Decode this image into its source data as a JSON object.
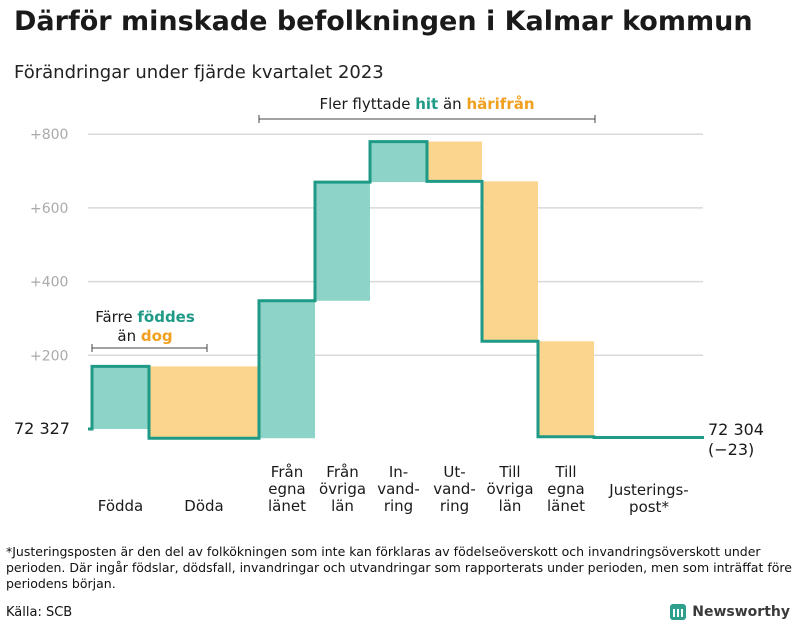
{
  "title": "Därför minskade befolkningen i Kalmar kommun",
  "subtitle": "Förändringar under fjärde kvartalet 2023",
  "colors": {
    "increase": "#8dd3c7",
    "decrease": "#fbd48d",
    "line": "#1e9a86",
    "accent_green": "#1e9a86",
    "accent_orange": "#f0a01e",
    "grid": "#d9d9d9",
    "tick": "#aaaaaa"
  },
  "chart_data": {
    "type": "bar",
    "variant": "waterfall",
    "start_value": 72327,
    "end_value": 72304,
    "net_change": -23,
    "start_label": "72  327",
    "end_label_line1": "72 304",
    "end_label_line2": "(−23)",
    "y_ticks": [
      "+800",
      "+600",
      "+400",
      "+200"
    ],
    "y_tick_values": [
      800,
      600,
      400,
      200
    ],
    "ylim": [
      -30,
      830
    ],
    "steps": [
      {
        "label": [
          "Födda"
        ],
        "kind": "increase",
        "from": 0,
        "to": 170
      },
      {
        "label": [
          "Döda"
        ],
        "kind": "decrease",
        "from": 170,
        "to": -25
      },
      {
        "label": [
          "Från",
          "egna",
          "länet"
        ],
        "kind": "increase",
        "from": -25,
        "to": 348
      },
      {
        "label": [
          "Från",
          "övriga",
          "län"
        ],
        "kind": "increase",
        "from": 348,
        "to": 670
      },
      {
        "label": [
          "In-",
          "vand-",
          "ring"
        ],
        "kind": "increase",
        "from": 670,
        "to": 780
      },
      {
        "label": [
          "Ut-",
          "vand-",
          "ring"
        ],
        "kind": "decrease",
        "from": 780,
        "to": 672
      },
      {
        "label": [
          "Till",
          "övriga",
          "län"
        ],
        "kind": "decrease",
        "from": 672,
        "to": 238
      },
      {
        "label": [
          "Till",
          "egna",
          "länet"
        ],
        "kind": "decrease",
        "from": 238,
        "to": -21
      },
      {
        "label": [
          "Justerings-",
          "post*"
        ],
        "kind": "adjustment",
        "from": -21,
        "to": -23
      }
    ],
    "annotations": {
      "births_bracket": {
        "line1": "Färre",
        "word_green": "föddes",
        "line2_prefix": "än",
        "word_orange": "dog"
      },
      "migration_bracket": {
        "prefix": "Fler flyttade",
        "word_green": "hit",
        "middle": "än",
        "word_orange": "härifrån"
      }
    }
  },
  "footnote": "*Justeringsposten är den del av folkökningen som inte kan förklaras av födelseöverskott och invandringsöverskott under perioden. Där ingår födslar, dödsfall, invandringar och utvandringar som rapporterats under perioden, men som inträffat före periodens början.",
  "source": "Källa: SCB",
  "brand": {
    "name": "Newsworthy",
    "icon": "bar-chart-icon"
  }
}
